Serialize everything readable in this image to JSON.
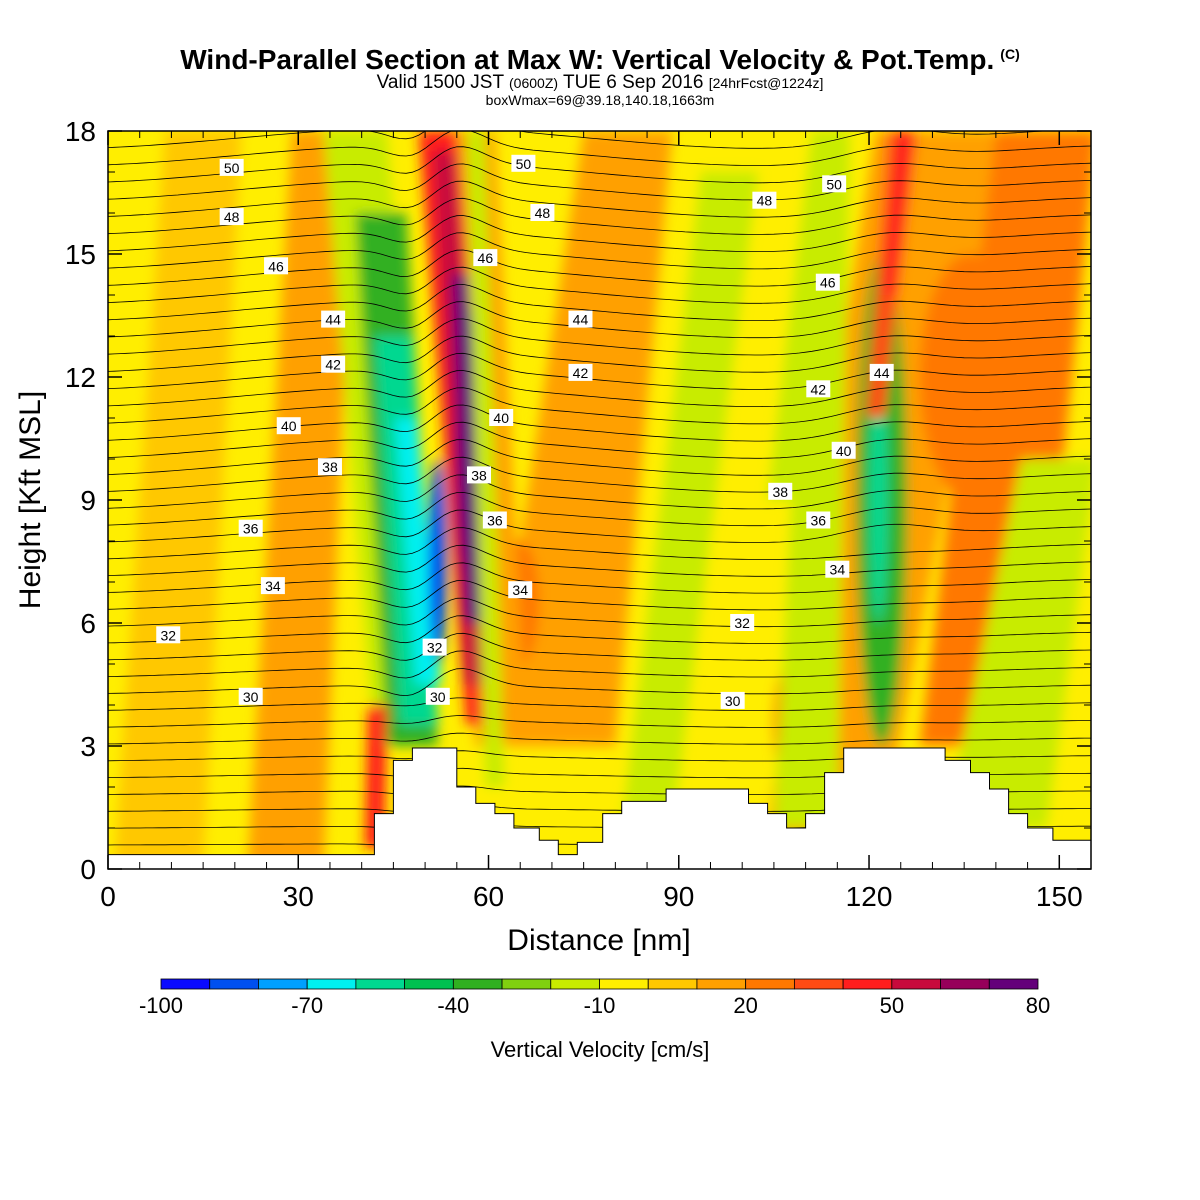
{
  "header": {
    "title": "Wind-Parallel Section at Max W: Vertical Velocity & Pot.Temp.",
    "copyright": "(C)",
    "valid_prefix": "Valid 1500 JST",
    "valid_utc": "(0600Z)",
    "valid_date": "TUE 6 Sep 2016",
    "valid_forecast": "[24hrFcst@1224z]",
    "box_info": "boxWmax=69@39.18,140.18,1663m"
  },
  "colors": {
    "palette": [
      "#0a0aff",
      "#0050f0",
      "#00a0ff",
      "#00f0f0",
      "#00d890",
      "#00c050",
      "#30b020",
      "#80d010",
      "#c8ec00",
      "#ffee00",
      "#ffc800",
      "#ffa000",
      "#ff7800",
      "#ff4b14",
      "#ff1e1e",
      "#c80a3c",
      "#96005a",
      "#64007a"
    ],
    "terrain": "#ffffff"
  },
  "chart_data": {
    "type": "heatmap",
    "xlabel": "Distance [nm]",
    "ylabel": "Height [Kft MSL]",
    "xlim": [
      0,
      155
    ],
    "ylim": [
      0,
      18
    ],
    "xticks": [
      0,
      30,
      60,
      90,
      120,
      150
    ],
    "yticks": [
      0,
      3,
      6,
      9,
      12,
      15,
      18
    ],
    "colorbar": {
      "label": "Vertical Velocity [cm/s]",
      "levels": [
        -100,
        -90,
        -80,
        -70,
        -60,
        -50,
        -40,
        -30,
        -20,
        -10,
        0,
        10,
        20,
        30,
        40,
        50,
        60,
        70,
        80
      ],
      "tick_labels": [
        -100,
        -70,
        -40,
        -10,
        20,
        50,
        80
      ]
    },
    "contour_variable": "Potential Temperature",
    "contour_labels": [
      {
        "x": 19.5,
        "y": 17.1,
        "v": "50"
      },
      {
        "x": 65.5,
        "y": 17.2,
        "v": "50"
      },
      {
        "x": 114.5,
        "y": 16.7,
        "v": "50"
      },
      {
        "x": 19.5,
        "y": 15.9,
        "v": "48"
      },
      {
        "x": 68.5,
        "y": 16.0,
        "v": "48"
      },
      {
        "x": 103.5,
        "y": 16.3,
        "v": "48"
      },
      {
        "x": 26.5,
        "y": 14.7,
        "v": "46"
      },
      {
        "x": 59.5,
        "y": 14.9,
        "v": "46"
      },
      {
        "x": 113.5,
        "y": 14.3,
        "v": "46"
      },
      {
        "x": 35.5,
        "y": 13.4,
        "v": "44"
      },
      {
        "x": 74.5,
        "y": 13.4,
        "v": "44"
      },
      {
        "x": 122.0,
        "y": 12.1,
        "v": "44"
      },
      {
        "x": 35.5,
        "y": 12.3,
        "v": "42"
      },
      {
        "x": 74.5,
        "y": 12.1,
        "v": "42"
      },
      {
        "x": 112.0,
        "y": 11.7,
        "v": "42"
      },
      {
        "x": 28.5,
        "y": 10.8,
        "v": "40"
      },
      {
        "x": 62.0,
        "y": 11.0,
        "v": "40"
      },
      {
        "x": 116.0,
        "y": 10.2,
        "v": "40"
      },
      {
        "x": 35.0,
        "y": 9.8,
        "v": "38"
      },
      {
        "x": 58.5,
        "y": 9.6,
        "v": "38"
      },
      {
        "x": 106.0,
        "y": 9.2,
        "v": "38"
      },
      {
        "x": 22.5,
        "y": 8.3,
        "v": "36"
      },
      {
        "x": 61.0,
        "y": 8.5,
        "v": "36"
      },
      {
        "x": 112.0,
        "y": 8.5,
        "v": "36"
      },
      {
        "x": 26.0,
        "y": 6.9,
        "v": "34"
      },
      {
        "x": 65.0,
        "y": 6.8,
        "v": "34"
      },
      {
        "x": 115.0,
        "y": 7.3,
        "v": "34"
      },
      {
        "x": 9.5,
        "y": 5.7,
        "v": "32"
      },
      {
        "x": 51.5,
        "y": 5.4,
        "v": "32"
      },
      {
        "x": 100.0,
        "y": 6.0,
        "v": "32"
      },
      {
        "x": 22.5,
        "y": 4.2,
        "v": "30"
      },
      {
        "x": 52.0,
        "y": 4.2,
        "v": "30"
      },
      {
        "x": 98.5,
        "y": 4.1,
        "v": "30"
      }
    ],
    "terrain_profile": [
      [
        0,
        0.35
      ],
      [
        42,
        0.35
      ],
      [
        42,
        1.35
      ],
      [
        45,
        1.35
      ],
      [
        45,
        2.65
      ],
      [
        48,
        2.65
      ],
      [
        48,
        2.95
      ],
      [
        55,
        2.95
      ],
      [
        55,
        2.0
      ],
      [
        58,
        2.0
      ],
      [
        58,
        1.6
      ],
      [
        61,
        1.6
      ],
      [
        61,
        1.35
      ],
      [
        64,
        1.35
      ],
      [
        64,
        1.0
      ],
      [
        68,
        1.0
      ],
      [
        68,
        0.7
      ],
      [
        71,
        0.7
      ],
      [
        71,
        0.35
      ],
      [
        74,
        0.35
      ],
      [
        74,
        0.65
      ],
      [
        78,
        0.65
      ],
      [
        78,
        1.35
      ],
      [
        81,
        1.35
      ],
      [
        81,
        1.65
      ],
      [
        88,
        1.65
      ],
      [
        88,
        1.95
      ],
      [
        101,
        1.95
      ],
      [
        101,
        1.6
      ],
      [
        104,
        1.6
      ],
      [
        104,
        1.35
      ],
      [
        107,
        1.35
      ],
      [
        107,
        1.0
      ],
      [
        110,
        1.0
      ],
      [
        110,
        1.35
      ],
      [
        113,
        1.35
      ],
      [
        113,
        2.35
      ],
      [
        116,
        2.35
      ],
      [
        116,
        2.95
      ],
      [
        132,
        2.95
      ],
      [
        132,
        2.65
      ],
      [
        136,
        2.65
      ],
      [
        136,
        2.35
      ],
      [
        139,
        2.35
      ],
      [
        139,
        1.95
      ],
      [
        142,
        1.95
      ],
      [
        142,
        1.35
      ],
      [
        145,
        1.35
      ],
      [
        145,
        1.0
      ],
      [
        149,
        1.0
      ],
      [
        149,
        0.7
      ],
      [
        155,
        0.7
      ]
    ]
  }
}
